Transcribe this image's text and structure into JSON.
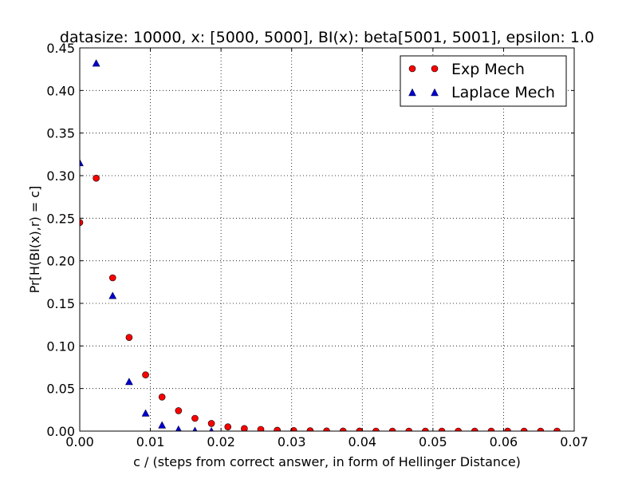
{
  "chart_data": {
    "type": "scatter",
    "title": "datasize: 10000, x: [5000, 5000], BI(x): beta[5001, 5001], epsilon: 1.0",
    "xlabel": "c / (steps from correct answer, in form of Hellinger Distance)",
    "ylabel": "Pr[H(BI(x),r) = c]",
    "xlim": [
      0,
      0.07
    ],
    "ylim": [
      0,
      0.45
    ],
    "xticks": [
      0,
      0.01,
      0.02,
      0.03,
      0.04,
      0.05,
      0.06,
      0.07
    ],
    "xtick_labels": [
      "0.00",
      "0.01",
      "0.02",
      "0.03",
      "0.04",
      "0.05",
      "0.06",
      "0.07"
    ],
    "yticks": [
      0,
      0.05,
      0.1,
      0.15,
      0.2,
      0.25,
      0.3,
      0.35,
      0.4,
      0.45
    ],
    "ytick_labels": [
      "0.00",
      "0.05",
      "0.10",
      "0.15",
      "0.20",
      "0.25",
      "0.30",
      "0.35",
      "0.40",
      "0.45"
    ],
    "grid": true,
    "legend_position": "top-right",
    "series": [
      {
        "name": "Exp Mech",
        "marker": "circle",
        "color": "#ff0000",
        "x": [
          0.0,
          0.00233,
          0.00466,
          0.00699,
          0.00932,
          0.01165,
          0.01398,
          0.01631,
          0.01864,
          0.02097,
          0.0233,
          0.02563,
          0.02796,
          0.03029,
          0.03262,
          0.03495,
          0.03728,
          0.03961,
          0.04194,
          0.04427,
          0.0466,
          0.04893,
          0.05126,
          0.05359,
          0.05592,
          0.05825,
          0.06058,
          0.06291,
          0.06524,
          0.06757
        ],
        "y": [
          0.245,
          0.297,
          0.18,
          0.11,
          0.066,
          0.04,
          0.024,
          0.015,
          0.009,
          0.005,
          0.003,
          0.002,
          0.001,
          0.0007,
          0.0004,
          0.0002,
          0.0001,
          0.0001,
          0.0,
          0.0,
          0.0,
          0.0,
          0.0,
          0.0,
          0.0,
          0.0,
          0.0,
          0.0,
          0.0,
          0.0
        ]
      },
      {
        "name": "Laplace Mech",
        "marker": "triangle",
        "color": "#0000cc",
        "x": [
          0.0,
          0.00233,
          0.00466,
          0.00699,
          0.00932,
          0.01165,
          0.01398,
          0.01631,
          0.01864
        ],
        "y": [
          0.315,
          0.432,
          0.159,
          0.058,
          0.021,
          0.007,
          0.002,
          0.0005,
          0.0001
        ]
      }
    ]
  }
}
